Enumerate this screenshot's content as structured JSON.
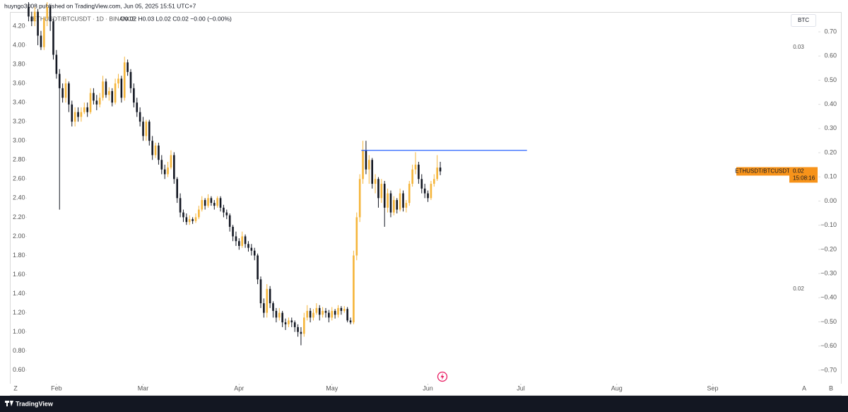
{
  "header": "huyngo3008 published on TradingView.com, Jun 05, 2025 15:51 UTC+7",
  "chart_data": {
    "type": "candlestick",
    "legend": {
      "symbol": "ETHUSDT/BTCUSDT · 1D · BINANCE",
      "ohlc": "O0.02 H0.03 L0.02 C0.02 −0.00 (−0.00%)"
    },
    "x": [
      22,
      23,
      24,
      25,
      26,
      27,
      28,
      29,
      30,
      31,
      32,
      33,
      34,
      35,
      36,
      37,
      38,
      39,
      40,
      41,
      42,
      43,
      44,
      45,
      46,
      47,
      48,
      49,
      50,
      51,
      52,
      53,
      54,
      55,
      56,
      57,
      58,
      59,
      60,
      61,
      62,
      63,
      64,
      65,
      66,
      67,
      68,
      69,
      70,
      71,
      72,
      73,
      74,
      75,
      76,
      77,
      78,
      79,
      80,
      81,
      82,
      83,
      84,
      85,
      86,
      87,
      88,
      89,
      90,
      91,
      92,
      93,
      94,
      95,
      96,
      97,
      98,
      99,
      100,
      101,
      102,
      103,
      104,
      105,
      106,
      107,
      108,
      109,
      110,
      111,
      112,
      113,
      114,
      115,
      116,
      117,
      118,
      119,
      120,
      121,
      122,
      123,
      124,
      125,
      126,
      127,
      128,
      129,
      130,
      131,
      132,
      133,
      134,
      135,
      136,
      137,
      138,
      139,
      140,
      141,
      142,
      143,
      144,
      145,
      146,
      147,
      148,
      149,
      150,
      151,
      152,
      153,
      154,
      155
    ],
    "series": [
      {
        "name": "ETHUSDT/BTCUSDT",
        "up_color": "#f5b53a",
        "down_color": "#131722",
        "ohlc": [
          [
            4.4,
            4.45,
            4.25,
            4.3
          ],
          [
            4.3,
            4.35,
            4.2,
            4.25
          ],
          [
            4.25,
            4.4,
            4.2,
            4.35
          ],
          [
            4.35,
            4.38,
            4.0,
            4.1
          ],
          [
            4.1,
            4.15,
            3.95,
            3.98
          ],
          [
            3.98,
            4.3,
            3.95,
            4.28
          ],
          [
            4.28,
            4.45,
            4.2,
            4.4
          ],
          [
            4.4,
            4.42,
            4.15,
            4.25
          ],
          [
            4.25,
            4.28,
            3.85,
            3.9
          ],
          [
            3.9,
            3.95,
            3.65,
            3.7
          ],
          [
            3.7,
            3.75,
            2.28,
            3.55
          ],
          [
            3.55,
            3.6,
            3.4,
            3.45
          ],
          [
            3.45,
            3.65,
            3.4,
            3.6
          ],
          [
            3.6,
            3.62,
            3.3,
            3.38
          ],
          [
            3.38,
            3.42,
            3.15,
            3.2
          ],
          [
            3.2,
            3.35,
            3.15,
            3.3
          ],
          [
            3.3,
            3.35,
            3.2,
            3.25
          ],
          [
            3.25,
            3.35,
            3.2,
            3.3
          ],
          [
            3.3,
            3.4,
            3.28,
            3.35
          ],
          [
            3.35,
            3.4,
            3.25,
            3.3
          ],
          [
            3.3,
            3.55,
            3.28,
            3.5
          ],
          [
            3.5,
            3.55,
            3.38,
            3.42
          ],
          [
            3.42,
            3.48,
            3.32,
            3.38
          ],
          [
            3.38,
            3.5,
            3.35,
            3.45
          ],
          [
            3.45,
            3.68,
            3.42,
            3.62
          ],
          [
            3.62,
            3.65,
            3.45,
            3.48
          ],
          [
            3.48,
            3.56,
            3.42,
            3.52
          ],
          [
            3.52,
            3.55,
            3.36,
            3.4
          ],
          [
            3.4,
            3.65,
            3.38,
            3.6
          ],
          [
            3.6,
            3.7,
            3.55,
            3.65
          ],
          [
            3.65,
            3.68,
            3.4,
            3.45
          ],
          [
            3.45,
            3.88,
            3.42,
            3.82
          ],
          [
            3.82,
            3.85,
            3.68,
            3.72
          ],
          [
            3.72,
            3.75,
            3.5,
            3.55
          ],
          [
            3.55,
            3.6,
            3.35,
            3.4
          ],
          [
            3.4,
            3.45,
            3.25,
            3.3
          ],
          [
            3.3,
            3.35,
            3.15,
            3.2
          ],
          [
            3.2,
            3.25,
            3.0,
            3.05
          ],
          [
            3.05,
            3.22,
            3.0,
            3.2
          ],
          [
            3.2,
            3.22,
            2.95,
            3.0
          ],
          [
            3.0,
            3.05,
            2.8,
            2.85
          ],
          [
            2.85,
            2.98,
            2.82,
            2.95
          ],
          [
            2.95,
            2.98,
            2.75,
            2.8
          ],
          [
            2.8,
            2.85,
            2.65,
            2.7
          ],
          [
            2.7,
            2.75,
            2.6,
            2.65
          ],
          [
            2.65,
            2.78,
            2.62,
            2.72
          ],
          [
            2.72,
            2.9,
            2.7,
            2.85
          ],
          [
            2.85,
            2.88,
            2.55,
            2.6
          ],
          [
            2.6,
            2.62,
            2.35,
            2.4
          ],
          [
            2.4,
            2.45,
            2.2,
            2.25
          ],
          [
            2.25,
            2.28,
            2.15,
            2.2
          ],
          [
            2.2,
            2.24,
            2.12,
            2.15
          ],
          [
            2.15,
            2.22,
            2.12,
            2.18
          ],
          [
            2.18,
            2.2,
            2.13,
            2.16
          ],
          [
            2.16,
            2.24,
            2.14,
            2.2
          ],
          [
            2.2,
            2.32,
            2.18,
            2.28
          ],
          [
            2.28,
            2.42,
            2.26,
            2.38
          ],
          [
            2.38,
            2.4,
            2.28,
            2.32
          ],
          [
            2.32,
            2.44,
            2.3,
            2.4
          ],
          [
            2.4,
            2.42,
            2.32,
            2.35
          ],
          [
            2.35,
            2.38,
            2.28,
            2.32
          ],
          [
            2.32,
            2.42,
            2.3,
            2.4
          ],
          [
            2.4,
            2.42,
            2.26,
            2.3
          ],
          [
            2.3,
            2.33,
            2.2,
            2.25
          ],
          [
            2.25,
            2.28,
            2.18,
            2.22
          ],
          [
            2.22,
            2.24,
            2.05,
            2.1
          ],
          [
            2.1,
            2.12,
            1.95,
            2.0
          ],
          [
            2.0,
            2.05,
            1.9,
            1.95
          ],
          [
            1.95,
            1.98,
            1.86,
            1.9
          ],
          [
            1.9,
            2.05,
            1.88,
            2.0
          ],
          [
            2.0,
            2.02,
            1.88,
            1.92
          ],
          [
            1.92,
            1.95,
            1.84,
            1.88
          ],
          [
            1.88,
            1.92,
            1.8,
            1.85
          ],
          [
            1.85,
            1.88,
            1.75,
            1.8
          ],
          [
            1.8,
            1.82,
            1.5,
            1.55
          ],
          [
            1.55,
            1.58,
            1.25,
            1.3
          ],
          [
            1.3,
            1.35,
            1.15,
            1.2
          ],
          [
            1.2,
            1.5,
            1.15,
            1.45
          ],
          [
            1.45,
            1.48,
            1.25,
            1.3
          ],
          [
            1.3,
            1.32,
            1.15,
            1.22
          ],
          [
            1.22,
            1.25,
            1.1,
            1.15
          ],
          [
            1.15,
            1.25,
            1.12,
            1.2
          ],
          [
            1.2,
            1.22,
            1.05,
            1.1
          ],
          [
            1.1,
            1.14,
            1.02,
            1.08
          ],
          [
            1.08,
            1.15,
            1.05,
            1.12
          ],
          [
            1.12,
            1.15,
            1.05,
            1.1
          ],
          [
            1.1,
            1.12,
            1.0,
            1.05
          ],
          [
            1.05,
            1.08,
            0.95,
            1.0
          ],
          [
            1.0,
            1.05,
            0.86,
            0.98
          ],
          [
            0.98,
            1.2,
            0.95,
            1.15
          ],
          [
            1.15,
            1.28,
            1.12,
            1.22
          ],
          [
            1.22,
            1.25,
            1.1,
            1.15
          ],
          [
            1.15,
            1.24,
            1.12,
            1.2
          ],
          [
            1.2,
            1.3,
            1.18,
            1.25
          ],
          [
            1.25,
            1.28,
            1.12,
            1.18
          ],
          [
            1.18,
            1.26,
            1.15,
            1.22
          ],
          [
            1.22,
            1.25,
            1.15,
            1.2
          ],
          [
            1.2,
            1.23,
            1.1,
            1.15
          ],
          [
            1.15,
            1.26,
            1.12,
            1.22
          ],
          [
            1.22,
            1.24,
            1.14,
            1.18
          ],
          [
            1.18,
            1.28,
            1.15,
            1.25
          ],
          [
            1.25,
            1.27,
            1.18,
            1.22
          ],
          [
            1.22,
            1.27,
            1.2,
            1.24
          ],
          [
            1.24,
            1.26,
            1.1,
            1.12
          ],
          [
            1.12,
            1.15,
            1.08,
            1.1
          ],
          [
            1.1,
            1.85,
            1.08,
            1.8
          ],
          [
            1.8,
            2.25,
            1.75,
            2.2
          ],
          [
            2.2,
            2.65,
            2.15,
            2.6
          ],
          [
            2.6,
            3.0,
            2.55,
            2.9
          ],
          [
            2.9,
            3.0,
            2.65,
            2.7
          ],
          [
            2.7,
            2.85,
            2.55,
            2.8
          ],
          [
            2.8,
            2.82,
            2.5,
            2.55
          ],
          [
            2.55,
            2.65,
            2.45,
            2.6
          ],
          [
            2.6,
            2.62,
            2.3,
            2.4
          ],
          [
            2.4,
            2.6,
            2.35,
            2.55
          ],
          [
            2.55,
            2.58,
            2.1,
            2.3
          ],
          [
            2.3,
            2.5,
            2.25,
            2.45
          ],
          [
            2.45,
            2.48,
            2.2,
            2.25
          ],
          [
            2.25,
            2.42,
            2.22,
            2.38
          ],
          [
            2.38,
            2.4,
            2.24,
            2.28
          ],
          [
            2.28,
            2.5,
            2.26,
            2.45
          ],
          [
            2.45,
            2.48,
            2.26,
            2.3
          ],
          [
            2.3,
            2.38,
            2.25,
            2.35
          ],
          [
            2.35,
            2.58,
            2.32,
            2.55
          ],
          [
            2.55,
            2.75,
            2.52,
            2.7
          ],
          [
            2.7,
            2.88,
            2.65,
            2.75
          ],
          [
            2.75,
            2.78,
            2.55,
            2.6
          ],
          [
            2.6,
            2.65,
            2.45,
            2.5
          ],
          [
            2.5,
            2.55,
            2.4,
            2.45
          ],
          [
            2.45,
            2.48,
            2.36,
            2.4
          ],
          [
            2.4,
            2.58,
            2.38,
            2.55
          ],
          [
            2.55,
            2.65,
            2.52,
            2.6
          ],
          [
            2.6,
            2.85,
            2.58,
            2.72
          ],
          [
            2.72,
            2.78,
            2.64,
            2.68
          ]
        ]
      }
    ],
    "xlim": [
      21.9,
      267.3
    ],
    "xticks": [
      {
        "value": 31,
        "label": "Feb"
      },
      {
        "value": 59,
        "label": "Mar"
      },
      {
        "value": 90,
        "label": "Apr"
      },
      {
        "value": 120,
        "label": "May"
      },
      {
        "value": 151,
        "label": "Jun"
      },
      {
        "value": 181,
        "label": "Jul"
      },
      {
        "value": 212,
        "label": "Aug"
      },
      {
        "value": 243,
        "label": "Sep"
      }
    ],
    "ylim": [
      0.48,
      4.34
    ],
    "yticks": [
      {
        "value": 0.6,
        "label": "0.60"
      },
      {
        "value": 0.8,
        "label": "0.80"
      },
      {
        "value": 1.0,
        "label": "1.00"
      },
      {
        "value": 1.2,
        "label": "1.20"
      },
      {
        "value": 1.4,
        "label": "1.40"
      },
      {
        "value": 1.6,
        "label": "1.60"
      },
      {
        "value": 1.8,
        "label": "1.80"
      },
      {
        "value": 2.0,
        "label": "2.00"
      },
      {
        "value": 2.2,
        "label": "2.20"
      },
      {
        "value": 2.4,
        "label": "2.40"
      },
      {
        "value": 2.6,
        "label": "2.60"
      },
      {
        "value": 2.8,
        "label": "2.80"
      },
      {
        "value": 3.0,
        "label": "3.00"
      },
      {
        "value": 3.2,
        "label": "3.20"
      },
      {
        "value": 3.4,
        "label": "3.40"
      },
      {
        "value": 3.6,
        "label": "3.60"
      },
      {
        "value": 3.8,
        "label": "3.80"
      },
      {
        "value": 4.0,
        "label": "4.00"
      },
      {
        "value": 4.2,
        "label": "4.20"
      }
    ],
    "y2lim": [
      -0.747,
      0.779
    ],
    "y2ticks": [
      {
        "value": -0.7,
        "label": "−0.70"
      },
      {
        "value": -0.6,
        "label": "−0.60"
      },
      {
        "value": -0.5,
        "label": "−0.50"
      },
      {
        "value": -0.4,
        "label": "−0.40"
      },
      {
        "value": -0.3,
        "label": "−0.30"
      },
      {
        "value": -0.2,
        "label": "−0.20"
      },
      {
        "value": -0.1,
        "label": "−0.10"
      },
      {
        "value": 0,
        "label": "0.00"
      },
      {
        "value": 0.1,
        "label": "0.10"
      },
      {
        "value": 0.2,
        "label": "0.20"
      },
      {
        "value": 0.3,
        "label": "0.30"
      },
      {
        "value": 0.4,
        "label": "0.40"
      },
      {
        "value": 0.5,
        "label": "0.50"
      },
      {
        "value": 0.6,
        "label": "0.60"
      },
      {
        "value": 0.7,
        "label": "0.70"
      }
    ],
    "y2_unit": "BTC",
    "scale_notes": [
      "0.03",
      "0.02"
    ],
    "price_tag": {
      "price": "0.02",
      "countdown": "15:08:16"
    },
    "horizontal_line": {
      "value": 2.9,
      "x": [
        129.5,
        183
      ],
      "color": "#2962ff"
    },
    "corner_buttons": [
      "Z",
      "A",
      "B"
    ]
  },
  "footer": "TradingView"
}
